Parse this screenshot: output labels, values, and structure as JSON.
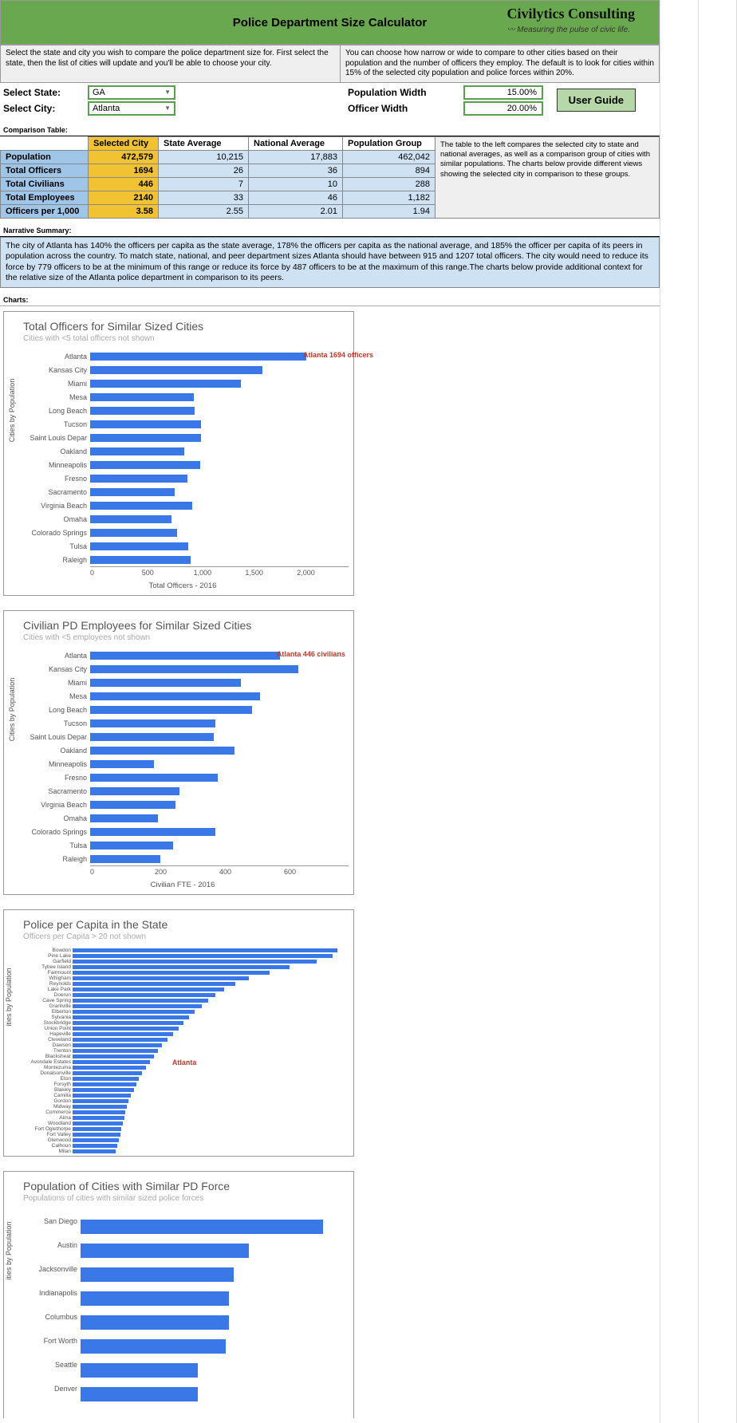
{
  "header": {
    "title": "Police Department Size Calculator",
    "brand": "Civilytics Consulting",
    "tagline": "Measuring the pulse of civic life."
  },
  "instructions": {
    "left": "Select the state and city you wish to compare the police department size for. First select the state, then the list of cities will update and you'll be able to choose your city.",
    "right": "You can choose how narrow or wide to compare to other cities based on their population and the number of officers they employ. The default is to look for cities within 15% of the selected city population and police forces within 20%."
  },
  "selectors": {
    "state_label": "Select State:",
    "state_value": "GA",
    "city_label": "Select City:",
    "city_value": "Atlanta",
    "pop_width_label": "Population Width",
    "pop_width_value": "15.00%",
    "officer_width_label": "Officer Width",
    "officer_width_value": "20.00%",
    "user_guide": "User Guide"
  },
  "sections": {
    "comparison": "Comparison Table:",
    "narrative": "Narrative Summary:",
    "charts": "Charts:"
  },
  "comparison": {
    "headers": [
      "",
      "Selected City",
      "State Average",
      "National Average",
      "Population Group"
    ],
    "rows": [
      {
        "label": "Population",
        "sel": "472,579",
        "state": "10,215",
        "nat": "17,883",
        "grp": "462,042"
      },
      {
        "label": "Total Officers",
        "sel": "1694",
        "state": "26",
        "nat": "36",
        "grp": "894"
      },
      {
        "label": "Total Civilians",
        "sel": "446",
        "state": "7",
        "nat": "10",
        "grp": "288"
      },
      {
        "label": "Total Employees",
        "sel": "2140",
        "state": "33",
        "nat": "46",
        "grp": "1,182"
      },
      {
        "label": "Officers per 1,000",
        "sel": "3.58",
        "state": "2.55",
        "nat": "2.01",
        "grp": "1.94"
      }
    ],
    "note": "The table to the left compares the selected city to state and national averages, as well as a comparison group of cities with similar populations. The charts below provide different views showing the selected city in comparison to these groups."
  },
  "narrative": "The city of Atlanta has 140% the officers per capita as the state average, 178% the officers per capita as the national average, and 185% the officer per capita of its peers in population across the country. To match state, national, and peer department sizes Atlanta should have between 915 and 1207 total officers. The city would need to reduce its force by 779 officers to be at the minimum of this range or reduce its force by 487 officers to be at the maximum of this range.The charts below provide additional context for the relative size of the Atlanta police department in comparison to its peers.",
  "chart1": {
    "title": "Total Officers for Similar Sized Cities",
    "subtitle": "Cities with <5 total officers not shown",
    "xlabel": "Total Officers - 2016",
    "annotation": "Atlanta 1694 officers",
    "max": 2000,
    "ticks": [
      "0",
      "500",
      "1,000",
      "1,500",
      "2,000"
    ],
    "bars": [
      {
        "label": "Atlanta",
        "v": 1694
      },
      {
        "label": "Kansas City",
        "v": 1350
      },
      {
        "label": "Miami",
        "v": 1180
      },
      {
        "label": "Mesa",
        "v": 810
      },
      {
        "label": "Long Beach",
        "v": 820
      },
      {
        "label": "Tucson",
        "v": 870
      },
      {
        "label": "Saint Louis Depar",
        "v": 870
      },
      {
        "label": "Oakland",
        "v": 740
      },
      {
        "label": "Minneapolis",
        "v": 860
      },
      {
        "label": "Fresno",
        "v": 760
      },
      {
        "label": "Sacramento",
        "v": 660
      },
      {
        "label": "Virginia Beach",
        "v": 800
      },
      {
        "label": "Omaha",
        "v": 640
      },
      {
        "label": "Colorado Springs",
        "v": 680
      },
      {
        "label": "Tulsa",
        "v": 770
      },
      {
        "label": "Raleigh",
        "v": 790
      }
    ]
  },
  "chart2": {
    "title": "Civilian PD Employees for Similar Sized Cities",
    "subtitle": "Cities with <5 employees not shown",
    "xlabel": "Civilian FTE - 2016",
    "annotation": "Atlanta 446 civilians",
    "max": 600,
    "ticks": [
      "0",
      "200",
      "400",
      "600"
    ],
    "bars": [
      {
        "label": "Atlanta",
        "v": 446
      },
      {
        "label": "Kansas City",
        "v": 490
      },
      {
        "label": "Miami",
        "v": 355
      },
      {
        "label": "Mesa",
        "v": 400
      },
      {
        "label": "Long Beach",
        "v": 380
      },
      {
        "label": "Tucson",
        "v": 295
      },
      {
        "label": "Saint Louis Depar",
        "v": 290
      },
      {
        "label": "Oakland",
        "v": 340
      },
      {
        "label": "Minneapolis",
        "v": 150
      },
      {
        "label": "Fresno",
        "v": 300
      },
      {
        "label": "Sacramento",
        "v": 210
      },
      {
        "label": "Virginia Beach",
        "v": 200
      },
      {
        "label": "Omaha",
        "v": 160
      },
      {
        "label": "Colorado Springs",
        "v": 295
      },
      {
        "label": "Tulsa",
        "v": 195
      },
      {
        "label": "Raleigh",
        "v": 165
      }
    ]
  },
  "chart3": {
    "title": "Police per Capita in the State",
    "subtitle": "Officers per Capita > 20 not shown",
    "annotation": "Atlanta",
    "max": 20,
    "bars": [
      {
        "label": "Bowdon",
        "v": 19.5
      },
      {
        "label": "Pine Lake",
        "v": 19.2
      },
      {
        "label": "Garfield",
        "v": 18
      },
      {
        "label": "Tybee Island",
        "v": 16
      },
      {
        "label": "Fairmount",
        "v": 14.5
      },
      {
        "label": "Whigham",
        "v": 13
      },
      {
        "label": "Reynolds",
        "v": 12
      },
      {
        "label": "Lake Park",
        "v": 11.2
      },
      {
        "label": "Doerun",
        "v": 10.5
      },
      {
        "label": "Cave Spring",
        "v": 10
      },
      {
        "label": "Grantville",
        "v": 9.5
      },
      {
        "label": "Elberton",
        "v": 9
      },
      {
        "label": "Sylvania",
        "v": 8.6
      },
      {
        "label": "Stockbridge",
        "v": 8.2
      },
      {
        "label": "Union Point",
        "v": 7.8
      },
      {
        "label": "Hapeville",
        "v": 7.4
      },
      {
        "label": "Cleveland",
        "v": 7
      },
      {
        "label": "Dawson",
        "v": 6.6
      },
      {
        "label": "Trenton",
        "v": 6.3
      },
      {
        "label": "Blackshear",
        "v": 6
      },
      {
        "label": "Avondale Estates",
        "v": 5.7,
        "ann": true
      },
      {
        "label": "Montezuma",
        "v": 5.4
      },
      {
        "label": "Donalsonville",
        "v": 5.1
      },
      {
        "label": "Eton",
        "v": 4.9
      },
      {
        "label": "Forsyth",
        "v": 4.7
      },
      {
        "label": "Blakely",
        "v": 4.5
      },
      {
        "label": "Camilla",
        "v": 4.3
      },
      {
        "label": "Gordon",
        "v": 4.1
      },
      {
        "label": "Midway",
        "v": 4
      },
      {
        "label": "Commerce",
        "v": 3.9
      },
      {
        "label": "Alma",
        "v": 3.8
      },
      {
        "label": "Woodland",
        "v": 3.7
      },
      {
        "label": "Fort Oglethorpe",
        "v": 3.6
      },
      {
        "label": "Fort Valley",
        "v": 3.5
      },
      {
        "label": "Glenwood",
        "v": 3.4
      },
      {
        "label": "Calhoun",
        "v": 3.3
      },
      {
        "label": "Milan",
        "v": 3.2
      }
    ]
  },
  "chart4": {
    "title": "Population of Cities with Similar PD Force",
    "subtitle": "Populations of cities with similar sized police forces",
    "max": 100,
    "bars": [
      {
        "label": "San Diego",
        "v": 95
      },
      {
        "label": "Austin",
        "v": 66
      },
      {
        "label": "Jacksonville",
        "v": 60
      },
      {
        "label": "Indianapolis",
        "v": 58
      },
      {
        "label": "Columbus",
        "v": 58
      },
      {
        "label": "Fort Worth",
        "v": 57
      },
      {
        "label": "Seattle",
        "v": 46
      },
      {
        "label": "Denver",
        "v": 46
      }
    ]
  }
}
